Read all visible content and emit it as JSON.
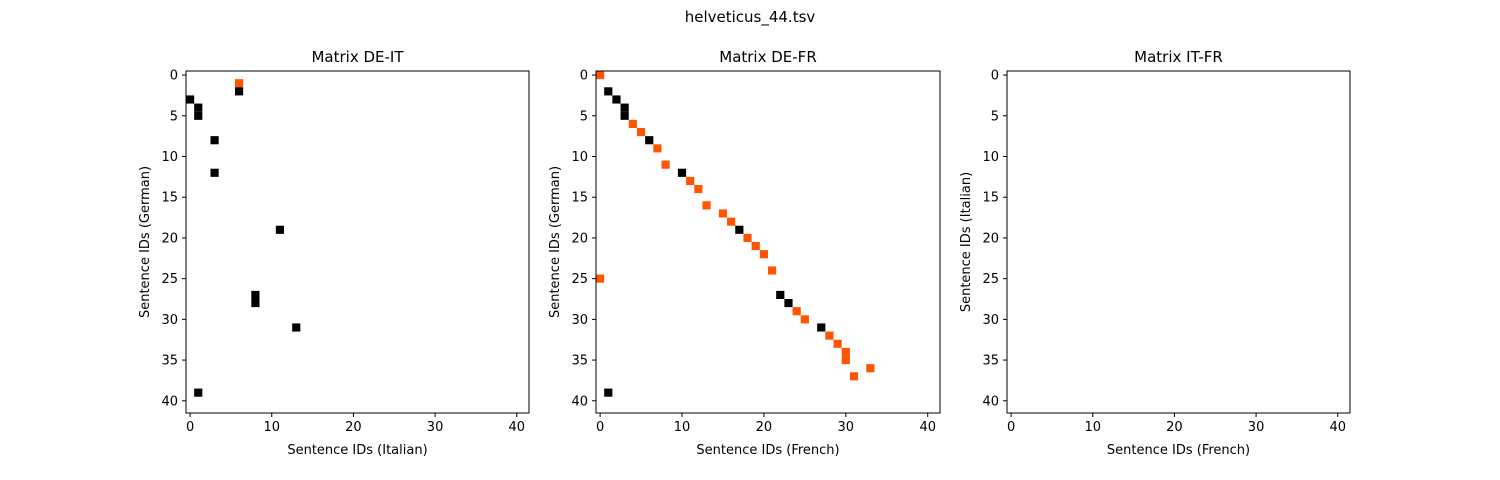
{
  "figure": {
    "title": "helveticus_44.tsv"
  },
  "colors": {
    "black": "#000000",
    "orange": "#ff5500",
    "axis": "#000000"
  },
  "chart_data": [
    {
      "type": "heatmap",
      "title": "Matrix DE-IT",
      "xlabel": "Sentence IDs (Italian)",
      "ylabel": "Sentence IDs (German)",
      "xlim": [
        -0.5,
        41.5
      ],
      "ylim": [
        41.5,
        -0.5
      ],
      "xticks": [
        0,
        10,
        20,
        30,
        40
      ],
      "yticks": [
        0,
        5,
        10,
        15,
        20,
        25,
        30,
        35,
        40
      ],
      "grid": false,
      "cells": [
        {
          "x": 6,
          "y": 1,
          "color": "orange"
        },
        {
          "x": 6,
          "y": 2,
          "color": "black"
        },
        {
          "x": 0,
          "y": 3,
          "color": "black"
        },
        {
          "x": 1,
          "y": 4,
          "color": "black"
        },
        {
          "x": 1,
          "y": 5,
          "color": "black"
        },
        {
          "x": 3,
          "y": 8,
          "color": "black"
        },
        {
          "x": 3,
          "y": 12,
          "color": "black"
        },
        {
          "x": 11,
          "y": 19,
          "color": "black"
        },
        {
          "x": 8,
          "y": 27,
          "color": "black"
        },
        {
          "x": 8,
          "y": 28,
          "color": "black"
        },
        {
          "x": 13,
          "y": 31,
          "color": "black"
        },
        {
          "x": 1,
          "y": 39,
          "color": "black"
        }
      ]
    },
    {
      "type": "heatmap",
      "title": "Matrix DE-FR",
      "xlabel": "Sentence IDs (French)",
      "ylabel": "Sentence IDs (German)",
      "xlim": [
        -0.5,
        41.5
      ],
      "ylim": [
        41.5,
        -0.5
      ],
      "xticks": [
        0,
        10,
        20,
        30,
        40
      ],
      "yticks": [
        0,
        5,
        10,
        15,
        20,
        25,
        30,
        35,
        40
      ],
      "grid": false,
      "cells": [
        {
          "x": 0,
          "y": 0,
          "color": "orange"
        },
        {
          "x": 1,
          "y": 2,
          "color": "black"
        },
        {
          "x": 2,
          "y": 3,
          "color": "black"
        },
        {
          "x": 3,
          "y": 4,
          "color": "black"
        },
        {
          "x": 3,
          "y": 5,
          "color": "black"
        },
        {
          "x": 4,
          "y": 6,
          "color": "orange"
        },
        {
          "x": 5,
          "y": 7,
          "color": "orange"
        },
        {
          "x": 6,
          "y": 8,
          "color": "black"
        },
        {
          "x": 7,
          "y": 9,
          "color": "orange"
        },
        {
          "x": 8,
          "y": 11,
          "color": "orange"
        },
        {
          "x": 10,
          "y": 12,
          "color": "black"
        },
        {
          "x": 11,
          "y": 13,
          "color": "orange"
        },
        {
          "x": 12,
          "y": 14,
          "color": "orange"
        },
        {
          "x": 13,
          "y": 16,
          "color": "orange"
        },
        {
          "x": 15,
          "y": 17,
          "color": "orange"
        },
        {
          "x": 16,
          "y": 18,
          "color": "orange"
        },
        {
          "x": 17,
          "y": 19,
          "color": "black"
        },
        {
          "x": 18,
          "y": 20,
          "color": "orange"
        },
        {
          "x": 19,
          "y": 21,
          "color": "orange"
        },
        {
          "x": 20,
          "y": 22,
          "color": "orange"
        },
        {
          "x": 21,
          "y": 24,
          "color": "orange"
        },
        {
          "x": 0,
          "y": 25,
          "color": "orange"
        },
        {
          "x": 22,
          "y": 27,
          "color": "black"
        },
        {
          "x": 23,
          "y": 28,
          "color": "black"
        },
        {
          "x": 24,
          "y": 29,
          "color": "orange"
        },
        {
          "x": 25,
          "y": 30,
          "color": "orange"
        },
        {
          "x": 27,
          "y": 31,
          "color": "black"
        },
        {
          "x": 28,
          "y": 32,
          "color": "orange"
        },
        {
          "x": 29,
          "y": 33,
          "color": "orange"
        },
        {
          "x": 30,
          "y": 34,
          "color": "orange"
        },
        {
          "x": 30,
          "y": 35,
          "color": "orange"
        },
        {
          "x": 33,
          "y": 36,
          "color": "orange"
        },
        {
          "x": 31,
          "y": 37,
          "color": "orange"
        },
        {
          "x": 1,
          "y": 39,
          "color": "black"
        }
      ]
    },
    {
      "type": "heatmap",
      "title": "Matrix IT-FR",
      "xlabel": "Sentence IDs (French)",
      "ylabel": "Sentence IDs (Italian)",
      "xlim": [
        -0.5,
        41.5
      ],
      "ylim": [
        41.5,
        -0.5
      ],
      "xticks": [
        0,
        10,
        20,
        30,
        40
      ],
      "yticks": [
        0,
        5,
        10,
        15,
        20,
        25,
        30,
        35,
        40
      ],
      "grid": false,
      "cells": []
    }
  ]
}
